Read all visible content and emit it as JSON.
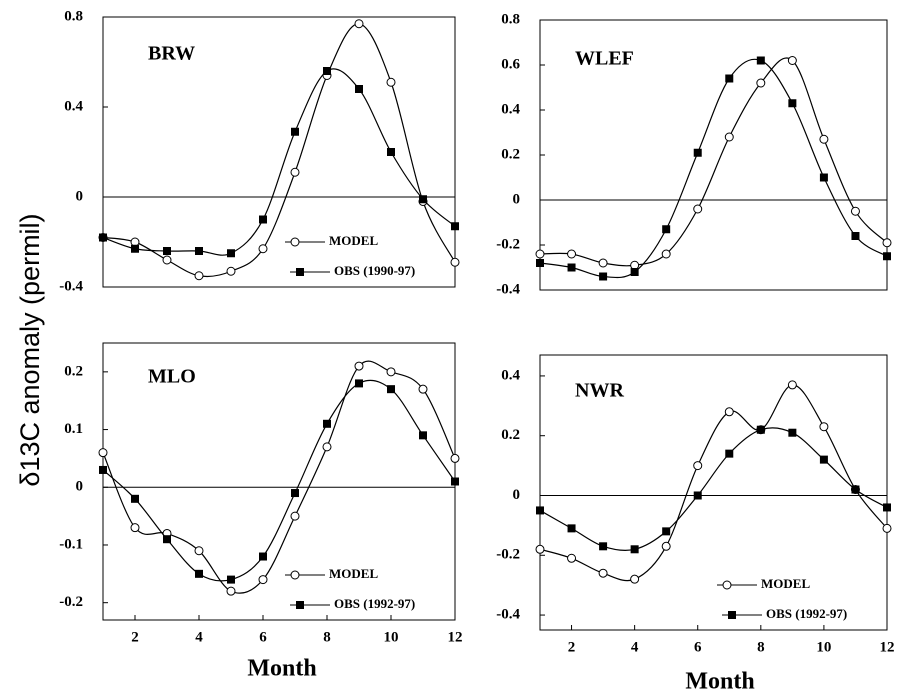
{
  "ylabel": "δ13C anomaly (permil)",
  "chart_data": [
    {
      "type": "line",
      "title": "BRW",
      "x": [
        1,
        2,
        3,
        4,
        5,
        6,
        7,
        8,
        9,
        10,
        11,
        12
      ],
      "xlim": [
        1,
        12
      ],
      "ylim": [
        -0.4,
        0.8
      ],
      "yticks": [
        -0.4,
        0,
        0.4,
        0.8
      ],
      "zero_line": true,
      "legend": "lower right",
      "series": [
        {
          "name": "MODEL",
          "color": "#000000",
          "marker": "circle",
          "values": [
            -0.18,
            -0.2,
            -0.28,
            -0.35,
            -0.33,
            -0.23,
            0.11,
            0.54,
            0.77,
            0.51,
            -0.02,
            -0.29
          ]
        },
        {
          "name": "OBS (1990-97)",
          "color": "#000000",
          "marker": "square",
          "values": [
            -0.18,
            -0.23,
            -0.24,
            -0.24,
            -0.25,
            -0.1,
            0.29,
            0.56,
            0.48,
            0.2,
            -0.01,
            -0.13
          ]
        }
      ]
    },
    {
      "type": "line",
      "title": "WLEF",
      "x": [
        1,
        2,
        3,
        4,
        5,
        6,
        7,
        8,
        9,
        10,
        11,
        12
      ],
      "xlim": [
        1,
        12
      ],
      "ylim": [
        -0.4,
        0.8
      ],
      "yticks": [
        -0.4,
        -0.2,
        0,
        0.2,
        0.4,
        0.6,
        0.8
      ],
      "zero_line": true,
      "series": [
        {
          "color": "#000000",
          "marker": "circle",
          "values": [
            -0.24,
            -0.24,
            -0.28,
            -0.29,
            -0.24,
            -0.04,
            0.28,
            0.52,
            0.62,
            0.27,
            -0.05,
            -0.19
          ]
        },
        {
          "color": "#000000",
          "marker": "square",
          "values": [
            -0.28,
            -0.3,
            -0.34,
            -0.32,
            -0.13,
            0.21,
            0.54,
            0.62,
            0.43,
            0.1,
            -0.16,
            -0.25
          ]
        }
      ]
    },
    {
      "type": "line",
      "title": "MLO",
      "xlabel": "Month",
      "x": [
        1,
        2,
        3,
        4,
        5,
        6,
        7,
        8,
        9,
        10,
        11,
        12
      ],
      "xlim": [
        1,
        12
      ],
      "xticks": [
        2,
        4,
        6,
        8,
        10,
        12
      ],
      "ylim": [
        -0.23,
        0.25
      ],
      "yticks": [
        -0.2,
        -0.1,
        0,
        0.1,
        0.2
      ],
      "zero_line": true,
      "legend": "lower right",
      "series": [
        {
          "name": "MODEL",
          "color": "#000000",
          "marker": "circle",
          "values": [
            0.06,
            -0.07,
            -0.08,
            -0.11,
            -0.18,
            -0.16,
            -0.05,
            0.07,
            0.21,
            0.2,
            0.17,
            0.05
          ]
        },
        {
          "name": "OBS (1992-97)",
          "color": "#000000",
          "marker": "square",
          "values": [
            0.03,
            -0.02,
            -0.09,
            -0.15,
            -0.16,
            -0.12,
            -0.01,
            0.11,
            0.18,
            0.17,
            0.09,
            0.01
          ]
        }
      ]
    },
    {
      "type": "line",
      "title": "NWR",
      "xlabel": "Month",
      "x": [
        1,
        2,
        3,
        4,
        5,
        6,
        7,
        8,
        9,
        10,
        11,
        12
      ],
      "xlim": [
        1,
        12
      ],
      "xticks": [
        2,
        4,
        6,
        8,
        10,
        12
      ],
      "ylim": [
        -0.45,
        0.47
      ],
      "yticks": [
        -0.4,
        -0.2,
        0,
        0.2,
        0.4
      ],
      "zero_line": true,
      "legend": "lower right",
      "series": [
        {
          "name": "MODEL",
          "color": "#000000",
          "marker": "circle",
          "values": [
            -0.18,
            -0.21,
            -0.26,
            -0.28,
            -0.17,
            0.1,
            0.28,
            0.22,
            0.37,
            0.23,
            0.02,
            -0.11
          ]
        },
        {
          "name": "OBS (1992-97)",
          "color": "#000000",
          "marker": "square",
          "values": [
            -0.05,
            -0.11,
            -0.17,
            -0.18,
            -0.12,
            0.0,
            0.14,
            0.22,
            0.21,
            0.12,
            0.02,
            -0.04
          ]
        }
      ]
    }
  ]
}
